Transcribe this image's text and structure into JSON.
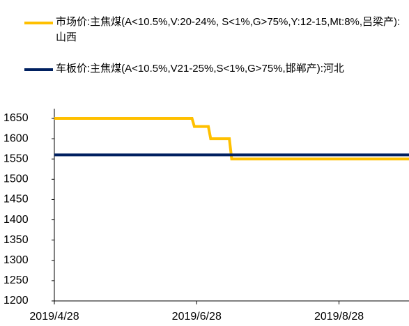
{
  "chart_data": {
    "type": "line",
    "series": [
      {
        "name": "市场价:主焦煤(A<10.5%,V:20-24%, S<1%,G>75%,Y:12-15,Mt:8%,吕梁产):山西",
        "color": "#FFC000",
        "x": [
          "2019/4/28",
          "2019/6/26",
          "2019/6/27",
          "2019/7/3",
          "2019/7/4",
          "2019/7/12",
          "2019/7/13",
          "2019/9/27"
        ],
        "values": [
          1650,
          1650,
          1630,
          1630,
          1600,
          1600,
          1550,
          1550
        ]
      },
      {
        "name": "车板价:主焦煤(A<10.5%,V21-25%,S<1%,G>75%,邯郸产):河北",
        "color": "#002060",
        "x": [
          "2019/4/28",
          "2019/9/27"
        ],
        "values": [
          1560,
          1560
        ]
      }
    ],
    "xlim": [
      "2019/4/28",
      "2019/9/27"
    ],
    "xticks": [
      "2019/4/28",
      "2019/6/28",
      "2019/8/28"
    ],
    "ylim": [
      1200,
      1650
    ],
    "yticks": [
      1200,
      1250,
      1300,
      1350,
      1400,
      1450,
      1500,
      1550,
      1600,
      1650
    ]
  }
}
